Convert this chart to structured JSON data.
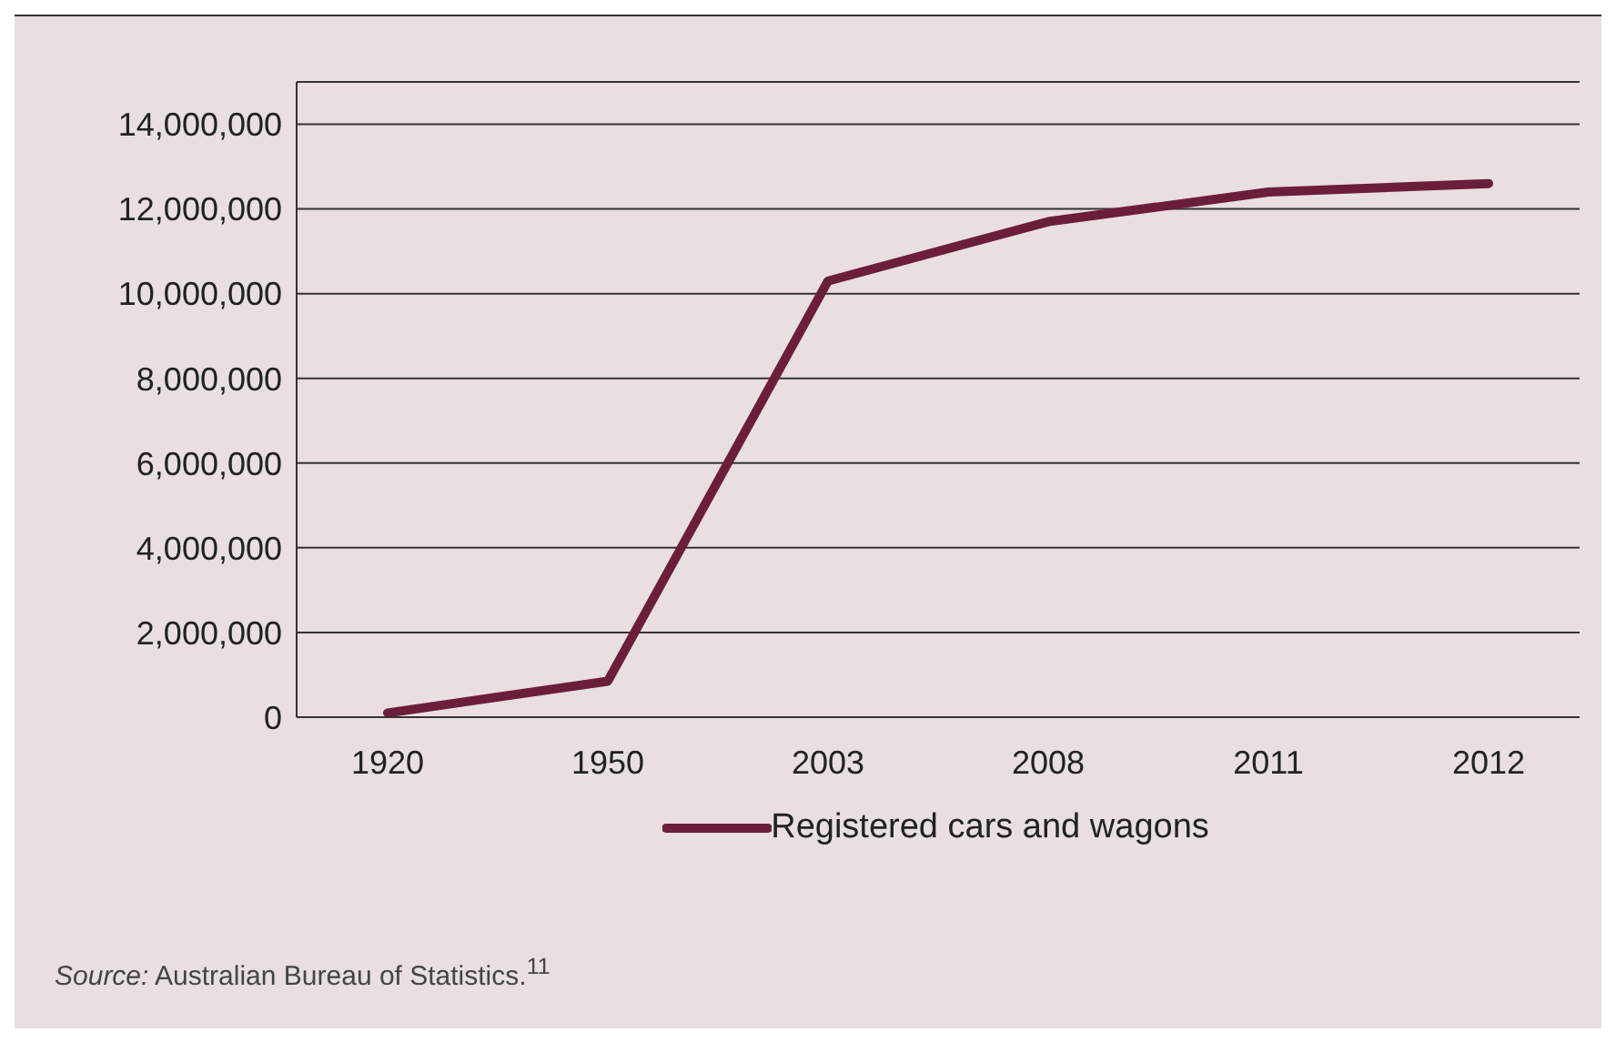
{
  "chart_data": {
    "type": "line",
    "categories": [
      "1920",
      "1950",
      "2003",
      "2008",
      "2011",
      "2012"
    ],
    "series": [
      {
        "name": "Registered cars and wagons",
        "color": "#6b1e3a",
        "values": [
          100000,
          850000,
          10300000,
          11700000,
          12400000,
          12600000
        ]
      }
    ],
    "ylim": [
      0,
      15000000
    ],
    "yticks": [
      0,
      {
        "value": 2000000,
        "label": "2,000,000"
      },
      {
        "value": 4000000,
        "label": "4,000,000"
      },
      {
        "value": 6000000,
        "label": "6,000,000"
      },
      {
        "value": 8000000,
        "label": "8,000,000"
      },
      {
        "value": 10000000,
        "label": "10,000,000"
      },
      {
        "value": 12000000,
        "label": "12,000,000"
      },
      {
        "value": 14000000,
        "label": "14,000,000"
      }
    ],
    "grid": "y",
    "legend": "bottom",
    "marker": "none",
    "line_style": "solid",
    "annotations": [
      "Source: Australian Bureau of Statistics.$^{11}$"
    ]
  }
}
